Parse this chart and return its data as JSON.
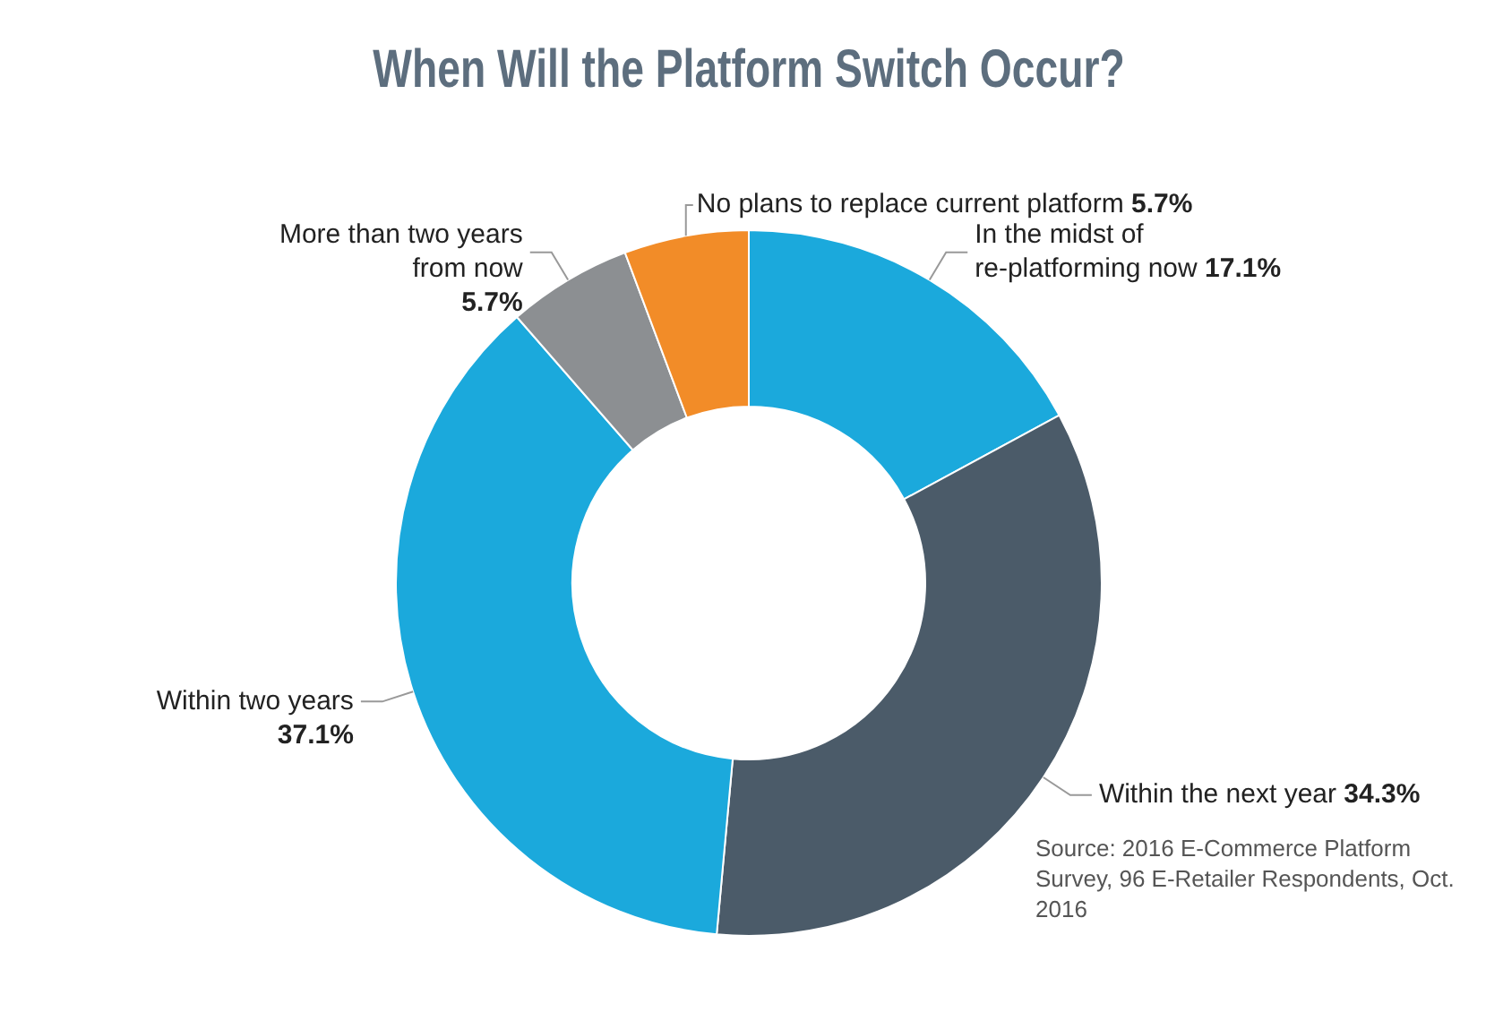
{
  "chart_data": {
    "type": "donut",
    "title": "When Will the Platform Switch Occur?",
    "categories": [
      "In the midst of re-platforming now",
      "Within the next year",
      "Within two years",
      "More than two years from now",
      "No plans to replace current platform"
    ],
    "values": [
      17.1,
      34.3,
      37.1,
      5.7,
      5.7
    ],
    "value_labels": [
      "17.1%",
      "34.3%",
      "37.1%",
      "5.7%",
      "5.7%"
    ],
    "colors": [
      "#1ba9dc",
      "#4b5b69",
      "#1ba9dc",
      "#8c8f92",
      "#f28c28"
    ],
    "legend": false,
    "annotations": [
      "Source: 2016 E-Commerce Platform Survey, 96 E-Retailer Respondents, Oct. 2016"
    ]
  }
}
